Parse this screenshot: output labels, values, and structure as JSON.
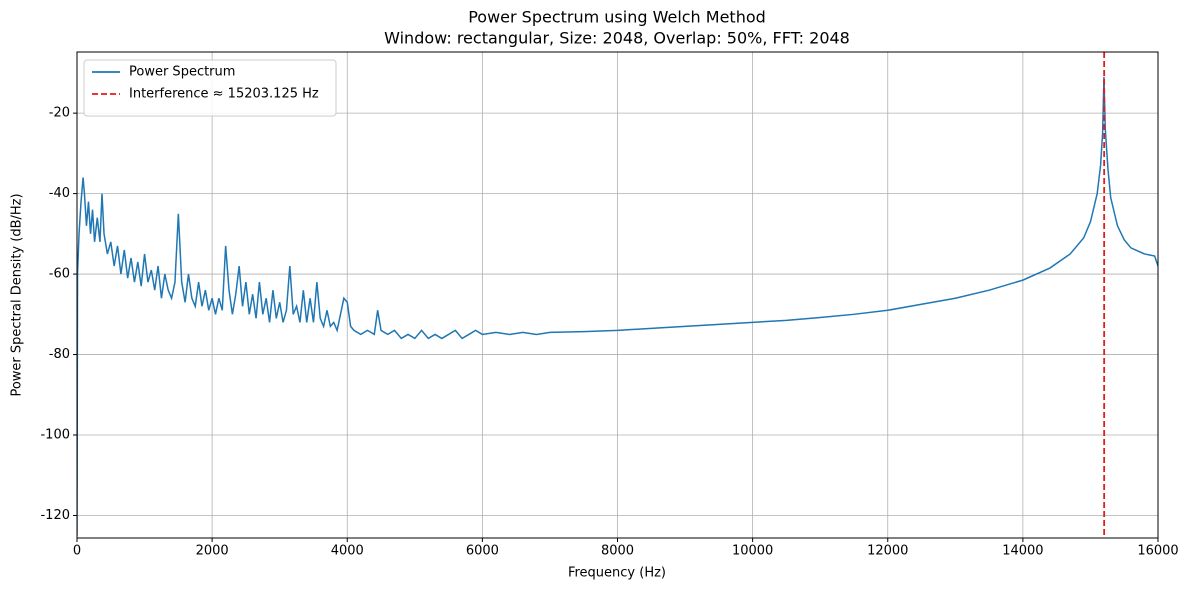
{
  "chart_data": {
    "type": "line",
    "title": "Power Spectrum using Welch Method",
    "subtitle": "Window: rectangular, Size: 2048, Overlap: 50%, FFT: 2048",
    "xlabel": "Frequency (Hz)",
    "ylabel": "Power Spectral Density (dB/Hz)",
    "xlim": [
      0,
      16000
    ],
    "ylim": [
      -125.6,
      -4.8
    ],
    "xticks": [
      0,
      2000,
      4000,
      6000,
      8000,
      10000,
      12000,
      14000,
      16000
    ],
    "yticks": [
      -120,
      -100,
      -80,
      -60,
      -40,
      -20
    ],
    "grid": true,
    "legend": "upper left",
    "x": [
      0,
      8,
      30,
      60,
      90,
      110,
      140,
      170,
      200,
      230,
      260,
      300,
      340,
      370,
      400,
      450,
      500,
      550,
      600,
      650,
      700,
      750,
      800,
      850,
      900,
      950,
      1000,
      1050,
      1100,
      1150,
      1200,
      1250,
      1300,
      1350,
      1400,
      1450,
      1500,
      1550,
      1600,
      1650,
      1700,
      1750,
      1800,
      1850,
      1900,
      1950,
      2000,
      2050,
      2100,
      2150,
      2200,
      2250,
      2300,
      2350,
      2400,
      2450,
      2500,
      2550,
      2600,
      2650,
      2700,
      2750,
      2800,
      2850,
      2900,
      2950,
      3000,
      3050,
      3100,
      3150,
      3200,
      3250,
      3300,
      3350,
      3400,
      3450,
      3500,
      3550,
      3600,
      3650,
      3700,
      3750,
      3800,
      3850,
      3900,
      3950,
      4000,
      4050,
      4100,
      4200,
      4300,
      4400,
      4450,
      4500,
      4600,
      4700,
      4800,
      4900,
      5000,
      5100,
      5200,
      5300,
      5400,
      5500,
      5600,
      5700,
      5800,
      5900,
      6000,
      6200,
      6400,
      6600,
      6800,
      7000,
      7500,
      8000,
      8500,
      9000,
      9500,
      10000,
      10500,
      11000,
      11500,
      12000,
      12500,
      13000,
      13500,
      14000,
      14400,
      14700,
      14900,
      15000,
      15100,
      15150,
      15180,
      15200,
      15220,
      15260,
      15300,
      15400,
      15500,
      15600,
      15800,
      15950,
      16000
    ],
    "series": [
      {
        "name": "Power Spectrum",
        "color": "#1f77b4",
        "values": [
          -125,
          -60,
          -50,
          -42,
          -36,
          -40,
          -48,
          -42,
          -50,
          -44,
          -52,
          -46,
          -52,
          -40,
          -50,
          -55,
          -52,
          -58,
          -53,
          -60,
          -54,
          -61,
          -56,
          -62,
          -57,
          -63,
          -55,
          -62,
          -59,
          -64,
          -58,
          -66,
          -60,
          -64,
          -66,
          -62,
          -45,
          -62,
          -67,
          -60,
          -66,
          -68,
          -62,
          -68,
          -64,
          -69,
          -66,
          -70,
          -66,
          -69,
          -53,
          -64,
          -70,
          -65,
          -58,
          -68,
          -62,
          -70,
          -65,
          -71,
          -62,
          -70,
          -66,
          -72,
          -64,
          -71,
          -67,
          -72,
          -69,
          -58,
          -70,
          -68,
          -72,
          -64,
          -72,
          -66,
          -72,
          -62,
          -71,
          -73,
          -69,
          -73,
          -72,
          -74,
          -70,
          -66,
          -67,
          -73,
          -74,
          -75,
          -74,
          -75,
          -69,
          -74,
          -75,
          -74,
          -76,
          -75,
          -76,
          -74,
          -76,
          -75,
          -76,
          -75,
          -74,
          -76,
          -75,
          -74,
          -75,
          -74.5,
          -75,
          -74.5,
          -75,
          -74.5,
          -74.3,
          -74,
          -73.5,
          -73,
          -72.5,
          -72,
          -71.5,
          -70.8,
          -70,
          -69,
          -67.5,
          -66,
          -64,
          -61.5,
          -58.5,
          -55,
          -51,
          -47,
          -40,
          -33,
          -25,
          -11,
          -24,
          -34,
          -41,
          -48,
          -51.5,
          -53.5,
          -55,
          -55.5,
          -58
        ]
      }
    ],
    "vline": {
      "name": "Interference ≈ 15203.125 Hz",
      "x": 15203.125,
      "color": "#e41a1c"
    }
  }
}
